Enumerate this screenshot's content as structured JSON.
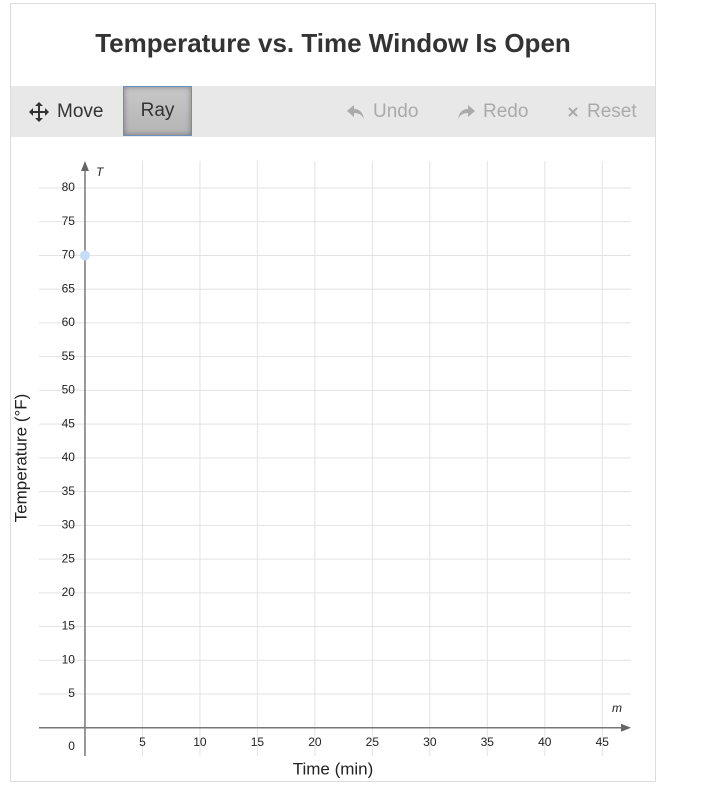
{
  "title": "Temperature vs. Time Window Is Open",
  "toolbar": {
    "buttons": [
      "Move",
      "Ray",
      "Undo",
      "Redo",
      "Reset"
    ]
  },
  "chart_data": {
    "type": "scatter",
    "x_label": "Time (min)",
    "y_label": "Temperature (°F)",
    "x_axis_name": "m",
    "y_axis_name": "T",
    "series": [
      {
        "color": "#c5def5",
        "x": [
          0
        ],
        "values": [
          70
        ]
      }
    ],
    "xlim": [
      -4,
      47.5
    ],
    "ylim": [
      -3,
      84
    ],
    "xticks": [
      5,
      10,
      15,
      20,
      25,
      30,
      35,
      40,
      45
    ],
    "yticks": [
      0,
      5,
      10,
      15,
      20,
      25,
      30,
      35,
      40,
      45,
      50,
      55,
      60,
      65,
      70,
      75,
      80
    ],
    "grid": true
  }
}
